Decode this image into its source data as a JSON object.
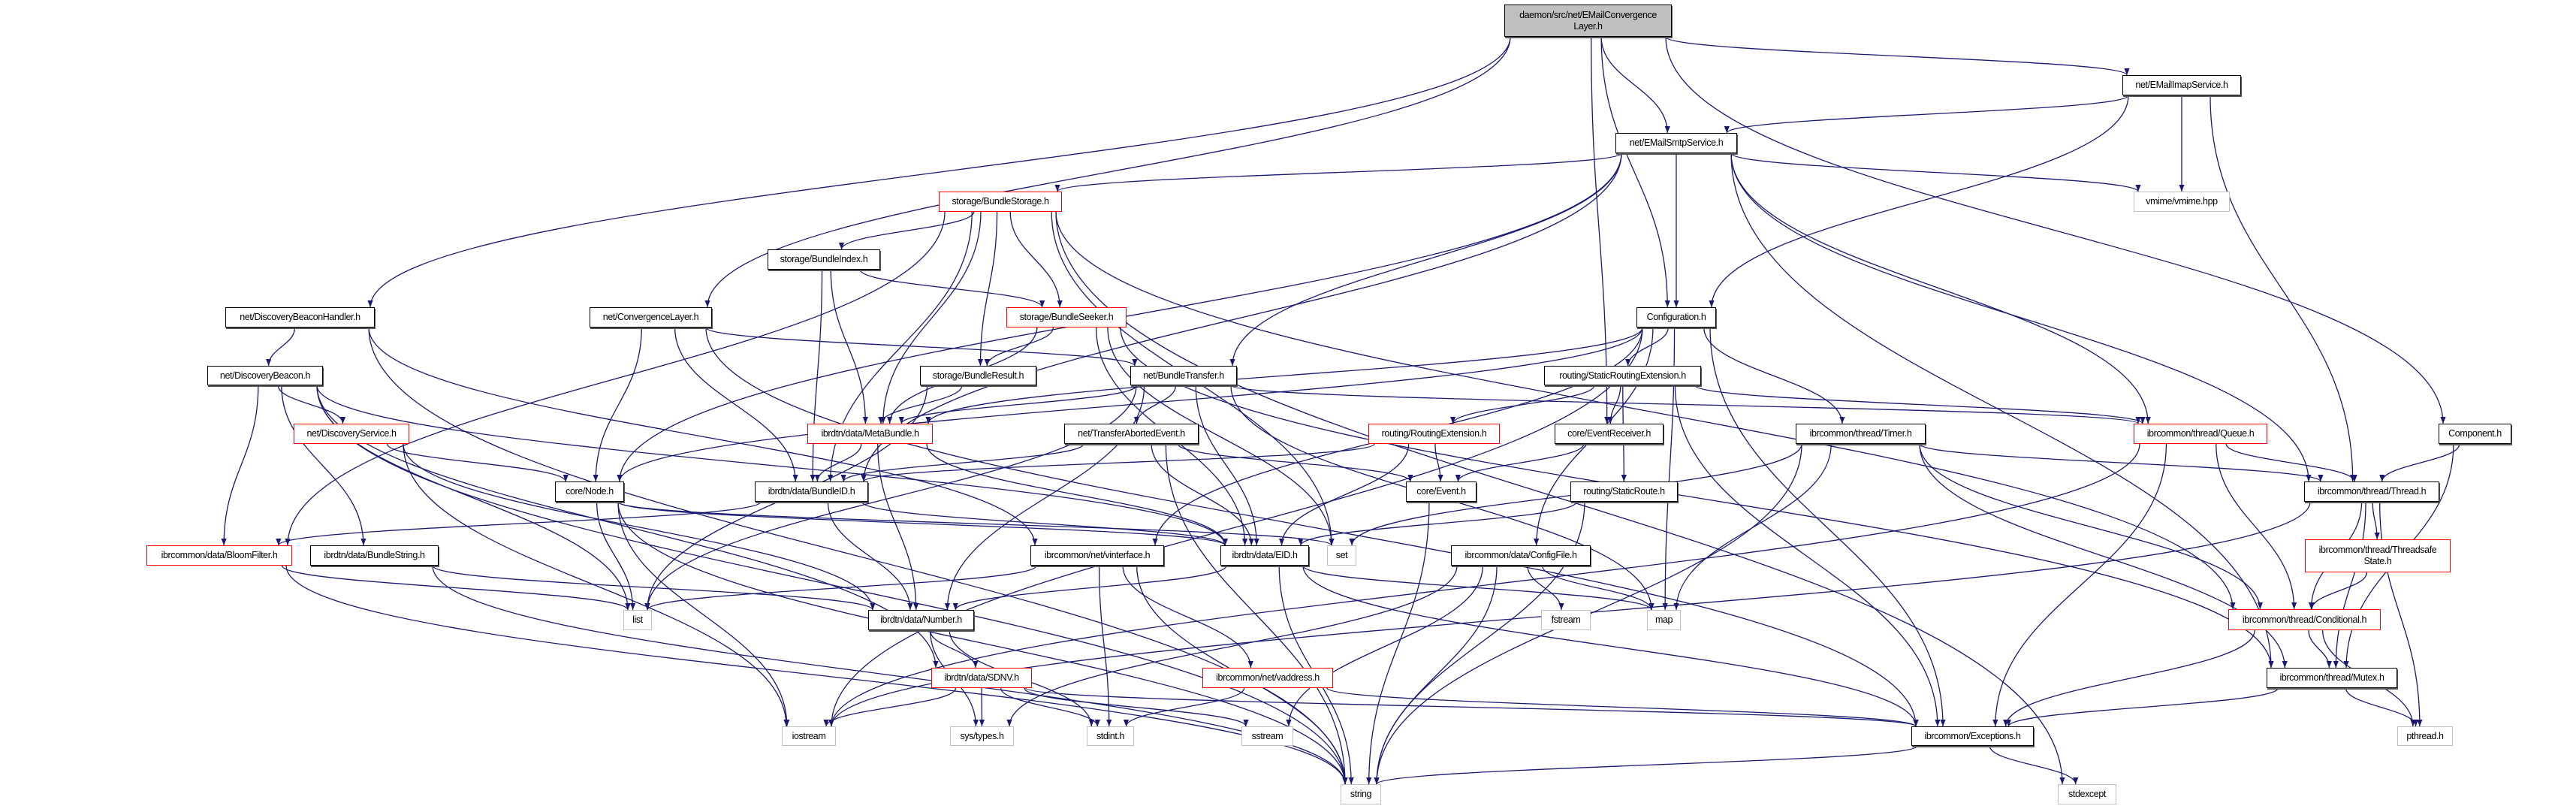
{
  "graph": {
    "edge_color": "#191970",
    "nodes": [
      {
        "id": "main",
        "label": "daemon/src/net/EMailConvergence\nLayer.h",
        "kind": "main"
      },
      {
        "id": "imap",
        "label": "net/EMailImapService.h",
        "kind": "normal"
      },
      {
        "id": "smtp",
        "label": "net/EMailSmtpService.h",
        "kind": "normal"
      },
      {
        "id": "vmime",
        "label": "vmime/vmime.hpp",
        "kind": "gray"
      },
      {
        "id": "bstorage",
        "label": "storage/BundleStorage.h",
        "kind": "red"
      },
      {
        "id": "bindex",
        "label": "storage/BundleIndex.h",
        "kind": "normal"
      },
      {
        "id": "dbh",
        "label": "net/DiscoveryBeaconHandler.h",
        "kind": "normal"
      },
      {
        "id": "cl",
        "label": "net/ConvergenceLayer.h",
        "kind": "normal"
      },
      {
        "id": "bseeker",
        "label": "storage/BundleSeeker.h",
        "kind": "red"
      },
      {
        "id": "config",
        "label": "Configuration.h",
        "kind": "normal"
      },
      {
        "id": "dbeacon",
        "label": "net/DiscoveryBeacon.h",
        "kind": "normal"
      },
      {
        "id": "bresult",
        "label": "storage/BundleResult.h",
        "kind": "normal"
      },
      {
        "id": "btransfer",
        "label": "net/BundleTransfer.h",
        "kind": "normal"
      },
      {
        "id": "sre",
        "label": "routing/StaticRoutingExtension.h",
        "kind": "normal"
      },
      {
        "id": "dservice",
        "label": "net/DiscoveryService.h",
        "kind": "red"
      },
      {
        "id": "metabundle",
        "label": "ibrdtn/data/MetaBundle.h",
        "kind": "red"
      },
      {
        "id": "tae",
        "label": "net/TransferAbortedEvent.h",
        "kind": "normal"
      },
      {
        "id": "rext",
        "label": "routing/RoutingExtension.h",
        "kind": "red"
      },
      {
        "id": "evrecv",
        "label": "core/EventReceiver.h",
        "kind": "normal"
      },
      {
        "id": "timer",
        "label": "ibrcommon/thread/Timer.h",
        "kind": "normal"
      },
      {
        "id": "queue",
        "label": "ibrcommon/thread/Queue.h",
        "kind": "red"
      },
      {
        "id": "component",
        "label": "Component.h",
        "kind": "normal"
      },
      {
        "id": "node",
        "label": "core/Node.h",
        "kind": "normal"
      },
      {
        "id": "bundleid",
        "label": "ibrdtn/data/BundleID.h",
        "kind": "normal"
      },
      {
        "id": "event",
        "label": "core/Event.h",
        "kind": "normal"
      },
      {
        "id": "sroute",
        "label": "routing/StaticRoute.h",
        "kind": "normal"
      },
      {
        "id": "thread",
        "label": "ibrcommon/thread/Thread.h",
        "kind": "normal"
      },
      {
        "id": "bloom",
        "label": "ibrcommon/data/BloomFilter.h",
        "kind": "red"
      },
      {
        "id": "bstring",
        "label": "ibrdtn/data/BundleString.h",
        "kind": "normal"
      },
      {
        "id": "vinterface",
        "label": "ibrcommon/net/vinterface.h",
        "kind": "normal"
      },
      {
        "id": "eid",
        "label": "ibrdtn/data/EID.h",
        "kind": "normal"
      },
      {
        "id": "set",
        "label": "set",
        "kind": "gray"
      },
      {
        "id": "configfile",
        "label": "ibrcommon/data/ConfigFile.h",
        "kind": "normal"
      },
      {
        "id": "tsstate",
        "label": "ibrcommon/thread/Threadsafe\nState.h",
        "kind": "red"
      },
      {
        "id": "list",
        "label": "list",
        "kind": "gray"
      },
      {
        "id": "number",
        "label": "ibrdtn/data/Number.h",
        "kind": "normal"
      },
      {
        "id": "fstream",
        "label": "fstream",
        "kind": "gray"
      },
      {
        "id": "map",
        "label": "map",
        "kind": "gray"
      },
      {
        "id": "conditional",
        "label": "ibrcommon/thread/Conditional.h",
        "kind": "red"
      },
      {
        "id": "sdnv",
        "label": "ibrdtn/data/SDNV.h",
        "kind": "red"
      },
      {
        "id": "vaddress",
        "label": "ibrcommon/net/vaddress.h",
        "kind": "red"
      },
      {
        "id": "mutex",
        "label": "ibrcommon/thread/Mutex.h",
        "kind": "normal"
      },
      {
        "id": "iostream",
        "label": "iostream",
        "kind": "gray"
      },
      {
        "id": "systypes",
        "label": "sys/types.h",
        "kind": "gray"
      },
      {
        "id": "stdint",
        "label": "stdint.h",
        "kind": "gray"
      },
      {
        "id": "sstream",
        "label": "sstream",
        "kind": "gray"
      },
      {
        "id": "exceptions",
        "label": "ibrcommon/Exceptions.h",
        "kind": "normal"
      },
      {
        "id": "pthread",
        "label": "pthread.h",
        "kind": "gray"
      },
      {
        "id": "string",
        "label": "string",
        "kind": "gray"
      },
      {
        "id": "stdexcept",
        "label": "stdexcept",
        "kind": "gray"
      }
    ],
    "edges": [
      [
        "main",
        "dbh"
      ],
      [
        "main",
        "cl"
      ],
      [
        "main",
        "smtp"
      ],
      [
        "main",
        "imap"
      ],
      [
        "main",
        "config"
      ],
      [
        "main",
        "evrecv"
      ],
      [
        "main",
        "component"
      ],
      [
        "imap",
        "smtp"
      ],
      [
        "imap",
        "vmime"
      ],
      [
        "imap",
        "config"
      ],
      [
        "imap",
        "thread"
      ],
      [
        "smtp",
        "bstorage"
      ],
      [
        "smtp",
        "vmime"
      ],
      [
        "smtp",
        "config"
      ],
      [
        "smtp",
        "btransfer"
      ],
      [
        "smtp",
        "node"
      ],
      [
        "smtp",
        "bundleid"
      ],
      [
        "smtp",
        "queue"
      ],
      [
        "smtp",
        "thread"
      ],
      [
        "smtp",
        "mutex"
      ],
      [
        "bstorage",
        "bindex"
      ],
      [
        "bstorage",
        "bseeker"
      ],
      [
        "bstorage",
        "bresult"
      ],
      [
        "bstorage",
        "metabundle"
      ],
      [
        "bstorage",
        "bundleid"
      ],
      [
        "bstorage",
        "bloom"
      ],
      [
        "bstorage",
        "set"
      ],
      [
        "bstorage",
        "stdexcept"
      ],
      [
        "bstorage",
        "conditional"
      ],
      [
        "bindex",
        "metabundle"
      ],
      [
        "bindex",
        "bundleid"
      ],
      [
        "bindex",
        "bseeker"
      ],
      [
        "dbh",
        "dbeacon"
      ],
      [
        "dbh",
        "string"
      ],
      [
        "dbh",
        "vinterface"
      ],
      [
        "dbeacon",
        "dservice"
      ],
      [
        "dbeacon",
        "bstring"
      ],
      [
        "dbeacon",
        "list"
      ],
      [
        "dbeacon",
        "string"
      ],
      [
        "dbeacon",
        "sdnv"
      ],
      [
        "dbeacon",
        "eid"
      ],
      [
        "dbeacon",
        "bloom"
      ],
      [
        "cl",
        "btransfer"
      ],
      [
        "cl",
        "node"
      ],
      [
        "cl",
        "bundleid"
      ],
      [
        "cl",
        "exceptions"
      ],
      [
        "bseeker",
        "bresult"
      ],
      [
        "bseeker",
        "metabundle"
      ],
      [
        "bseeker",
        "eid"
      ],
      [
        "bseeker",
        "set"
      ],
      [
        "bseeker",
        "mutex"
      ],
      [
        "config",
        "node"
      ],
      [
        "config",
        "sre"
      ],
      [
        "config",
        "timer"
      ],
      [
        "config",
        "configfile"
      ],
      [
        "config",
        "map"
      ],
      [
        "config",
        "exceptions"
      ],
      [
        "config",
        "vinterface"
      ],
      [
        "config",
        "metabundle"
      ],
      [
        "config",
        "iostream"
      ],
      [
        "bresult",
        "metabundle"
      ],
      [
        "bresult",
        "list"
      ],
      [
        "btransfer",
        "tae"
      ],
      [
        "btransfer",
        "metabundle"
      ],
      [
        "btransfer",
        "eid"
      ],
      [
        "btransfer",
        "queue"
      ],
      [
        "btransfer",
        "list"
      ],
      [
        "btransfer",
        "map"
      ],
      [
        "btransfer",
        "number"
      ],
      [
        "sre",
        "rext"
      ],
      [
        "sre",
        "evrecv"
      ],
      [
        "sre",
        "sroute"
      ],
      [
        "sre",
        "queue"
      ],
      [
        "sre",
        "exceptions"
      ],
      [
        "metabundle",
        "bundleid"
      ],
      [
        "metabundle",
        "number"
      ],
      [
        "metabundle",
        "eid"
      ],
      [
        "tae",
        "event"
      ],
      [
        "tae",
        "eid"
      ],
      [
        "tae",
        "bundleid"
      ],
      [
        "tae",
        "string"
      ],
      [
        "rext",
        "event"
      ],
      [
        "rext",
        "bundleid"
      ],
      [
        "rext",
        "eid"
      ],
      [
        "evrecv",
        "event"
      ],
      [
        "queue",
        "thread"
      ],
      [
        "queue",
        "conditional"
      ],
      [
        "queue",
        "exceptions"
      ],
      [
        "queue",
        "iostream"
      ],
      [
        "component",
        "thread"
      ],
      [
        "component",
        "mutex"
      ],
      [
        "dservice",
        "node"
      ],
      [
        "dservice",
        "number"
      ],
      [
        "dservice",
        "iostream"
      ],
      [
        "timer",
        "thread"
      ],
      [
        "timer",
        "conditional"
      ],
      [
        "timer",
        "mutex"
      ],
      [
        "timer",
        "string"
      ],
      [
        "timer",
        "map"
      ],
      [
        "timer",
        "set"
      ],
      [
        "event",
        "string"
      ],
      [
        "bundleid",
        "eid"
      ],
      [
        "bundleid",
        "number"
      ],
      [
        "bundleid",
        "bloom"
      ],
      [
        "node",
        "eid"
      ],
      [
        "node",
        "list"
      ],
      [
        "node",
        "set"
      ],
      [
        "node",
        "iostream"
      ],
      [
        "node",
        "string"
      ],
      [
        "sroute",
        "eid"
      ],
      [
        "sroute",
        "string"
      ],
      [
        "thread",
        "conditional"
      ],
      [
        "thread",
        "tsstate"
      ],
      [
        "thread",
        "mutex"
      ],
      [
        "thread",
        "pthread"
      ],
      [
        "thread",
        "iostream"
      ],
      [
        "tsstate",
        "conditional"
      ],
      [
        "eid",
        "number"
      ],
      [
        "eid",
        "string"
      ],
      [
        "eid",
        "map"
      ],
      [
        "eid",
        "exceptions"
      ],
      [
        "bloom",
        "list"
      ],
      [
        "bloom",
        "string"
      ],
      [
        "bstring",
        "number"
      ],
      [
        "bstring",
        "string"
      ],
      [
        "vinterface",
        "list"
      ],
      [
        "vinterface",
        "vaddress"
      ],
      [
        "vinterface",
        "stdint"
      ],
      [
        "vinterface",
        "string"
      ],
      [
        "configfile",
        "map"
      ],
      [
        "configfile",
        "fstream"
      ],
      [
        "configfile",
        "sstream"
      ],
      [
        "configfile",
        "string"
      ],
      [
        "configfile",
        "systypes"
      ],
      [
        "conditional",
        "mutex"
      ],
      [
        "conditional",
        "exceptions"
      ],
      [
        "conditional",
        "pthread"
      ],
      [
        "number",
        "sdnv"
      ],
      [
        "number",
        "systypes"
      ],
      [
        "number",
        "stdint"
      ],
      [
        "sdnv",
        "systypes"
      ],
      [
        "sdnv",
        "stdint"
      ],
      [
        "sdnv",
        "sstream"
      ],
      [
        "sdnv",
        "iostream"
      ],
      [
        "sdnv",
        "exceptions"
      ],
      [
        "vaddress",
        "stdint"
      ],
      [
        "vaddress",
        "exceptions"
      ],
      [
        "mutex",
        "exceptions"
      ],
      [
        "mutex",
        "pthread"
      ],
      [
        "exceptions",
        "stdexcept"
      ],
      [
        "exceptions",
        "string"
      ]
    ]
  }
}
